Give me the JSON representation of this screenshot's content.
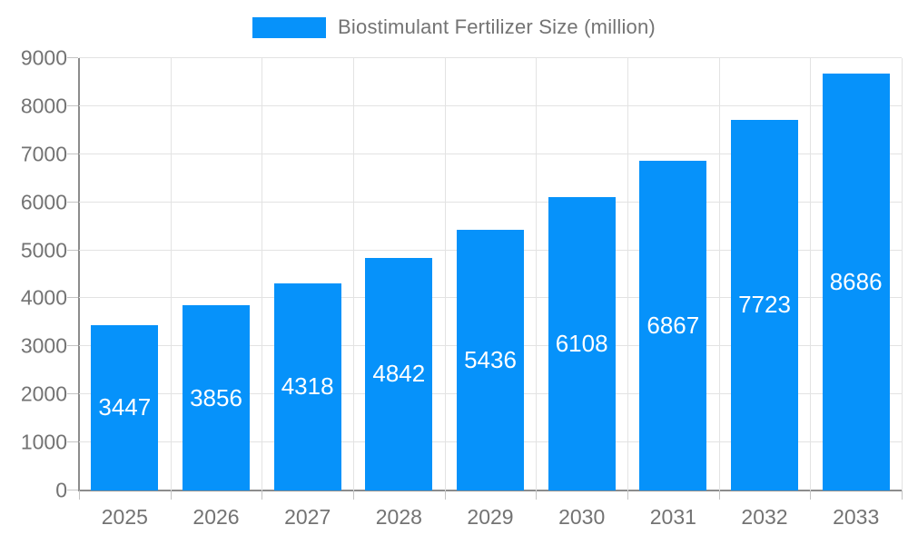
{
  "legend": {
    "label": "Biostimulant Fertilizer Size (million)"
  },
  "chart_data": {
    "type": "bar",
    "title": "Biostimulant Fertilizer Size (million)",
    "categories": [
      "2025",
      "2026",
      "2027",
      "2028",
      "2029",
      "2030",
      "2031",
      "2032",
      "2033"
    ],
    "values": [
      3447,
      3856,
      4318,
      4842,
      5436,
      6108,
      6867,
      7723,
      8686
    ],
    "series": [
      {
        "name": "Biostimulant Fertilizer Size (million)",
        "values": [
          3447,
          3856,
          4318,
          4842,
          5436,
          6108,
          6867,
          7723,
          8686
        ]
      }
    ],
    "xlabel": "",
    "ylabel": "",
    "ylim": [
      0,
      9000
    ],
    "ytick_step": 1000,
    "ytick_labels": [
      "0",
      "1000",
      "2000",
      "3000",
      "4000",
      "5000",
      "6000",
      "7000",
      "8000",
      "9000"
    ],
    "grid": true,
    "legend_position": "top",
    "bar_value_labels_shown": true
  },
  "colors": {
    "bar": "#0692fa",
    "axis": "#8c8c8c",
    "grid": "#e3e3e3",
    "tick": "#c4c4c4",
    "tick_text": "#737373",
    "title_text": "#737373",
    "bar_label_text": "#ffffff",
    "background": "#ffffff"
  }
}
